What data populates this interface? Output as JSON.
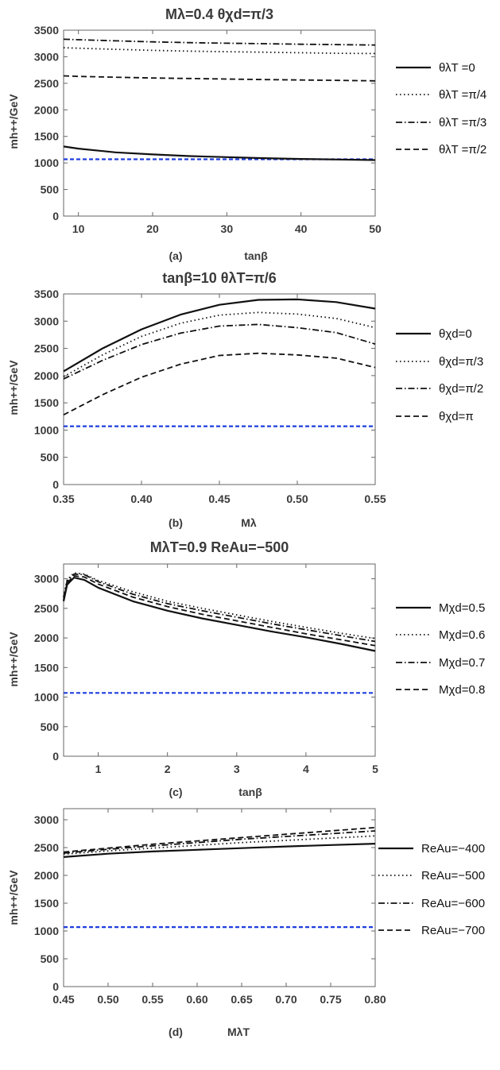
{
  "chart_data": [
    {
      "type": "line",
      "title": "Mλ=0.4   θχd=π/3",
      "panel_label": "(a)",
      "xlabel": "tanβ",
      "ylabel": "mh++/GeV",
      "xlim": [
        8,
        50
      ],
      "ylim": [
        0,
        3500
      ],
      "xticks": [
        10,
        20,
        30,
        40,
        50
      ],
      "yticks": [
        0,
        500,
        1000,
        1500,
        2000,
        2500,
        3000,
        3500
      ],
      "x": [
        8,
        10,
        15,
        20,
        25,
        30,
        35,
        40,
        45,
        50
      ],
      "series": [
        {
          "name": "θλT =0",
          "style": "solid",
          "values": [
            1310,
            1270,
            1200,
            1160,
            1130,
            1110,
            1090,
            1075,
            1065,
            1055
          ]
        },
        {
          "name": "θλT =π/4",
          "style": "dotted",
          "values": [
            3170,
            3160,
            3140,
            3120,
            3105,
            3095,
            3085,
            3075,
            3065,
            3060
          ]
        },
        {
          "name": "θλT =π/3",
          "style": "dashdot",
          "values": [
            3330,
            3320,
            3300,
            3280,
            3265,
            3255,
            3245,
            3235,
            3228,
            3220
          ]
        },
        {
          "name": "θλT =π/2",
          "style": "dashed",
          "values": [
            2640,
            2630,
            2615,
            2600,
            2590,
            2580,
            2570,
            2562,
            2555,
            2545
          ]
        }
      ],
      "reference_line": {
        "value": 1070,
        "color": "#1f3fdd",
        "style": "dashed"
      },
      "legend_position": "right"
    },
    {
      "type": "line",
      "title": "tanβ=10   θλT=π/6",
      "panel_label": "(b)",
      "xlabel": "Mλ",
      "ylabel": "mh++/GeV",
      "xlim": [
        0.35,
        0.55
      ],
      "ylim": [
        0,
        3500
      ],
      "xticks": [
        "0.35",
        "0.40",
        "0.45",
        "0.50",
        "0.55"
      ],
      "yticks": [
        0,
        500,
        1000,
        1500,
        2000,
        2500,
        3000,
        3500
      ],
      "x": [
        0.35,
        0.375,
        0.4,
        0.425,
        0.45,
        0.475,
        0.5,
        0.525,
        0.55
      ],
      "series": [
        {
          "name": "θχd=0",
          "style": "solid",
          "values": [
            2080,
            2500,
            2850,
            3120,
            3300,
            3390,
            3400,
            3350,
            3230
          ]
        },
        {
          "name": "θχd=π/3",
          "style": "dotted",
          "values": [
            1980,
            2380,
            2720,
            2960,
            3110,
            3160,
            3130,
            3050,
            2880
          ]
        },
        {
          "name": "θχd=π/2",
          "style": "dashdot",
          "values": [
            1940,
            2280,
            2570,
            2780,
            2910,
            2940,
            2880,
            2790,
            2580
          ]
        },
        {
          "name": "θχd=π",
          "style": "dashed",
          "values": [
            1280,
            1650,
            1970,
            2210,
            2370,
            2410,
            2380,
            2320,
            2150
          ]
        }
      ],
      "reference_line": {
        "value": 1070,
        "color": "#1f3fdd",
        "style": "dashed"
      },
      "legend_position": "right"
    },
    {
      "type": "line",
      "title": "MλT=0.9   ReAu=−500",
      "panel_label": "(c)",
      "xlabel": "tanβ",
      "ylabel": "mh++/GeV",
      "xlim": [
        0.5,
        5
      ],
      "ylim": [
        0,
        3250
      ],
      "xticks": [
        1,
        2,
        3,
        4,
        5
      ],
      "yticks": [
        0,
        500,
        1000,
        1500,
        2000,
        2500,
        3000
      ],
      "x": [
        0.5,
        0.55,
        0.65,
        0.8,
        1,
        1.5,
        2,
        2.5,
        3,
        3.5,
        4,
        4.5,
        5
      ],
      "series": [
        {
          "name": "Mχd=0.5",
          "style": "solid",
          "values": [
            2620,
            2900,
            3020,
            2980,
            2850,
            2620,
            2460,
            2330,
            2220,
            2110,
            2010,
            1900,
            1780
          ]
        },
        {
          "name": "Mχd=0.6",
          "style": "dotted",
          "values": [
            2700,
            2980,
            3100,
            3080,
            2970,
            2780,
            2620,
            2500,
            2390,
            2280,
            2180,
            2080,
            1990
          ]
        },
        {
          "name": "Mχd=0.7",
          "style": "dashdot",
          "values": [
            2680,
            2960,
            3080,
            3070,
            2950,
            2740,
            2580,
            2460,
            2350,
            2240,
            2140,
            2040,
            1940
          ]
        },
        {
          "name": "Mχd=0.8",
          "style": "dashed",
          "values": [
            2650,
            2930,
            3050,
            3030,
            2910,
            2690,
            2530,
            2400,
            2290,
            2180,
            2070,
            1970,
            1870
          ]
        }
      ],
      "reference_line": {
        "value": 1070,
        "color": "#1f3fdd",
        "style": "dashed"
      },
      "legend_position": "right"
    },
    {
      "type": "line",
      "title": "",
      "panel_label": "(d)",
      "xlabel": "MλT",
      "ylabel": "mh++/GeV",
      "xlim": [
        0.45,
        0.8
      ],
      "ylim": [
        0,
        3200
      ],
      "xticks": [
        "0.45",
        "0.50",
        "0.55",
        "0.60",
        "0.65",
        "0.70",
        "0.75",
        "0.80"
      ],
      "yticks": [
        0,
        500,
        1000,
        1500,
        2000,
        2500,
        3000
      ],
      "x": [
        0.45,
        0.5,
        0.55,
        0.6,
        0.65,
        0.7,
        0.75,
        0.8
      ],
      "series": [
        {
          "name": "ReAu=−400",
          "style": "solid",
          "values": [
            2330,
            2390,
            2430,
            2460,
            2490,
            2520,
            2545,
            2570
          ]
        },
        {
          "name": "ReAu=−500",
          "style": "dotted",
          "values": [
            2380,
            2440,
            2490,
            2540,
            2590,
            2630,
            2670,
            2710
          ]
        },
        {
          "name": "ReAu=−600",
          "style": "dashdot",
          "values": [
            2400,
            2470,
            2530,
            2590,
            2650,
            2700,
            2750,
            2800
          ]
        },
        {
          "name": "ReAu=−700",
          "style": "dashed",
          "values": [
            2420,
            2490,
            2560,
            2620,
            2680,
            2740,
            2800,
            2860
          ]
        }
      ],
      "reference_line": {
        "value": 1070,
        "color": "#1f3fdd",
        "style": "dashed"
      },
      "legend_position": "right"
    }
  ]
}
